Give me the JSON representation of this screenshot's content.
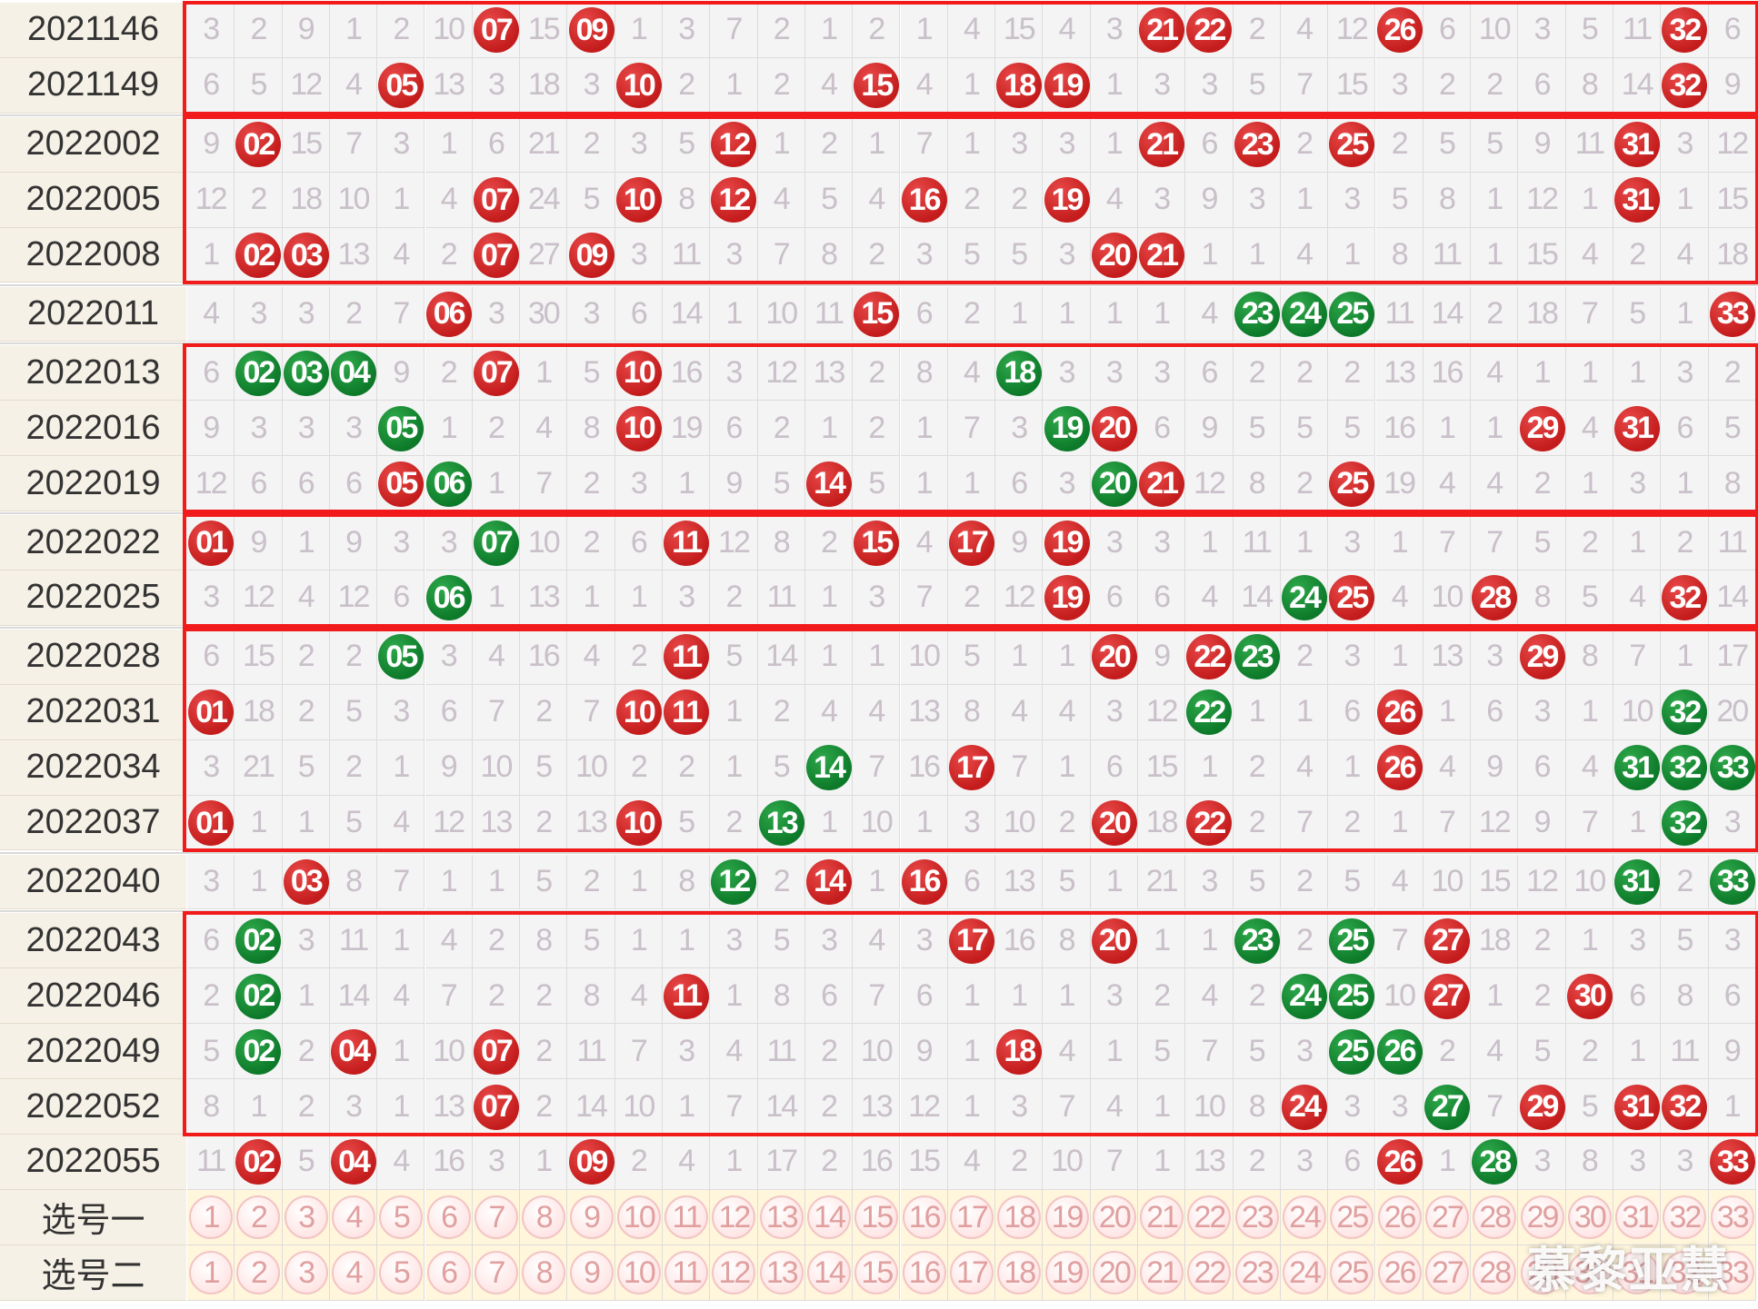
{
  "chart_data": {
    "type": "table",
    "title": "",
    "columns": 33,
    "rows": [
      {
        "label": "2021146",
        "cells": [
          "3",
          "2",
          "9",
          "1",
          "2",
          "10",
          "07",
          "15",
          "09",
          "1",
          "3",
          "7",
          "2",
          "1",
          "2",
          "1",
          "4",
          "15",
          "4",
          "3",
          "21",
          "22",
          "2",
          "4",
          "12",
          "26",
          "6",
          "10",
          "3",
          "5",
          "11",
          "32",
          "6"
        ],
        "balls": {
          "07": "red",
          "09": "red",
          "21": "red",
          "22": "red",
          "26": "red",
          "32": "red"
        }
      },
      {
        "label": "2021149",
        "cells": [
          "6",
          "5",
          "12",
          "4",
          "05",
          "13",
          "3",
          "18",
          "3",
          "10",
          "2",
          "1",
          "2",
          "4",
          "15",
          "4",
          "1",
          "18",
          "19",
          "1",
          "3",
          "3",
          "5",
          "7",
          "15",
          "3",
          "2",
          "2",
          "6",
          "8",
          "14",
          "32",
          "9"
        ],
        "balls": {
          "05": "red",
          "10": "red",
          "15": "red",
          "18": "red",
          "19": "red",
          "32": "red"
        }
      },
      {
        "label": "2022002",
        "cells": [
          "9",
          "02",
          "15",
          "7",
          "3",
          "1",
          "6",
          "21",
          "2",
          "3",
          "5",
          "12",
          "1",
          "2",
          "1",
          "7",
          "1",
          "3",
          "3",
          "1",
          "21",
          "6",
          "23",
          "2",
          "25",
          "2",
          "5",
          "5",
          "9",
          "11",
          "31",
          "3",
          "12"
        ],
        "balls": {
          "02": "red",
          "12": "red",
          "21": "red",
          "23": "red",
          "25": "red",
          "31": "red"
        }
      },
      {
        "label": "2022005",
        "cells": [
          "12",
          "2",
          "18",
          "10",
          "1",
          "4",
          "07",
          "24",
          "5",
          "10",
          "8",
          "12",
          "4",
          "5",
          "4",
          "16",
          "2",
          "2",
          "19",
          "4",
          "3",
          "9",
          "3",
          "1",
          "3",
          "5",
          "8",
          "1",
          "12",
          "1",
          "31",
          "1",
          "15"
        ],
        "balls": {
          "07": "red",
          "10": "red",
          "12": "red",
          "16": "red",
          "19": "red",
          "31": "red"
        }
      },
      {
        "label": "2022008",
        "cells": [
          "1",
          "02",
          "03",
          "13",
          "4",
          "2",
          "07",
          "27",
          "09",
          "3",
          "11",
          "3",
          "7",
          "8",
          "2",
          "3",
          "5",
          "5",
          "3",
          "20",
          "21",
          "1",
          "1",
          "4",
          "1",
          "8",
          "11",
          "1",
          "15",
          "4",
          "2",
          "4",
          "18"
        ],
        "balls": {
          "02": "red",
          "03": "red",
          "07": "red",
          "09": "red",
          "20": "red",
          "21": "red"
        }
      },
      {
        "label": "2022011",
        "cells": [
          "4",
          "3",
          "3",
          "2",
          "7",
          "06",
          "3",
          "30",
          "3",
          "6",
          "14",
          "1",
          "10",
          "11",
          "15",
          "6",
          "2",
          "1",
          "1",
          "1",
          "1",
          "4",
          "23",
          "24",
          "25",
          "11",
          "14",
          "2",
          "18",
          "7",
          "5",
          "1",
          "33"
        ],
        "balls": {
          "06": "red",
          "15": "red",
          "23": "green",
          "24": "green",
          "25": "green",
          "33": "red"
        }
      },
      {
        "label": "2022013",
        "cells": [
          "6",
          "02",
          "03",
          "04",
          "9",
          "2",
          "07",
          "1",
          "5",
          "10",
          "16",
          "3",
          "12",
          "13",
          "2",
          "8",
          "4",
          "18",
          "3",
          "3",
          "3",
          "6",
          "2",
          "2",
          "2",
          "13",
          "16",
          "4",
          "1",
          "1",
          "1",
          "3",
          "2"
        ],
        "balls": {
          "02": "green",
          "03": "green",
          "04": "green",
          "07": "red",
          "10": "red",
          "18": "green"
        }
      },
      {
        "label": "2022016",
        "cells": [
          "9",
          "3",
          "3",
          "3",
          "05",
          "1",
          "2",
          "4",
          "8",
          "10",
          "19",
          "6",
          "2",
          "1",
          "2",
          "1",
          "7",
          "3",
          "19",
          "20",
          "6",
          "9",
          "5",
          "5",
          "5",
          "16",
          "1",
          "1",
          "29",
          "4",
          "31",
          "6",
          "5"
        ],
        "balls": {
          "05": "green",
          "10": "red",
          "19": "green",
          "20": "red",
          "29": "red",
          "31": "red"
        }
      },
      {
        "label": "2022019",
        "cells": [
          "12",
          "6",
          "6",
          "6",
          "05",
          "06",
          "1",
          "7",
          "2",
          "3",
          "1",
          "9",
          "5",
          "14",
          "5",
          "1",
          "1",
          "6",
          "3",
          "20",
          "21",
          "12",
          "8",
          "2",
          "25",
          "19",
          "4",
          "4",
          "2",
          "1",
          "3",
          "1",
          "8"
        ],
        "balls": {
          "05": "red",
          "06": "green",
          "14": "red",
          "20": "green",
          "21": "red",
          "25": "red"
        }
      },
      {
        "label": "2022022",
        "cells": [
          "01",
          "9",
          "1",
          "9",
          "3",
          "3",
          "07",
          "10",
          "2",
          "6",
          "11",
          "12",
          "8",
          "2",
          "15",
          "4",
          "17",
          "9",
          "19",
          "3",
          "3",
          "1",
          "11",
          "1",
          "3",
          "1",
          "7",
          "7",
          "5",
          "2",
          "1",
          "2",
          "11"
        ],
        "balls": {
          "01": "red",
          "07": "green",
          "11": "red",
          "15": "red",
          "17": "red",
          "19": "red"
        }
      },
      {
        "label": "2022025",
        "cells": [
          "3",
          "12",
          "4",
          "12",
          "6",
          "06",
          "1",
          "13",
          "1",
          "1",
          "3",
          "2",
          "11",
          "1",
          "3",
          "7",
          "2",
          "12",
          "19",
          "6",
          "6",
          "4",
          "14",
          "24",
          "25",
          "4",
          "10",
          "28",
          "8",
          "5",
          "4",
          "32",
          "14"
        ],
        "balls": {
          "06": "green",
          "19": "red",
          "24": "green",
          "25": "red",
          "28": "red",
          "32": "red"
        }
      },
      {
        "label": "2022028",
        "cells": [
          "6",
          "15",
          "2",
          "2",
          "05",
          "3",
          "4",
          "16",
          "4",
          "2",
          "11",
          "5",
          "14",
          "1",
          "1",
          "10",
          "5",
          "1",
          "1",
          "20",
          "9",
          "22",
          "23",
          "2",
          "3",
          "1",
          "13",
          "3",
          "29",
          "8",
          "7",
          "1",
          "17"
        ],
        "balls": {
          "05": "green",
          "11": "red",
          "20": "red",
          "22": "red",
          "23": "green",
          "29": "red"
        }
      },
      {
        "label": "2022031",
        "cells": [
          "01",
          "18",
          "2",
          "5",
          "3",
          "6",
          "7",
          "2",
          "7",
          "10",
          "11",
          "1",
          "2",
          "4",
          "4",
          "13",
          "8",
          "4",
          "4",
          "3",
          "12",
          "22",
          "1",
          "1",
          "6",
          "26",
          "1",
          "6",
          "3",
          "1",
          "10",
          "32",
          "20"
        ],
        "balls": {
          "01": "red",
          "10": "red",
          "11": "red",
          "22": "green",
          "26": "red",
          "32": "green"
        }
      },
      {
        "label": "2022034",
        "cells": [
          "3",
          "21",
          "5",
          "2",
          "1",
          "9",
          "10",
          "5",
          "10",
          "2",
          "2",
          "1",
          "5",
          "14",
          "7",
          "16",
          "17",
          "7",
          "1",
          "6",
          "15",
          "1",
          "2",
          "4",
          "1",
          "26",
          "4",
          "9",
          "6",
          "4",
          "31",
          "32",
          "33"
        ],
        "balls": {
          "14": "green",
          "17": "red",
          "26": "red",
          "31": "green",
          "32": "green",
          "33": "green"
        }
      },
      {
        "label": "2022037",
        "cells": [
          "01",
          "1",
          "1",
          "5",
          "4",
          "12",
          "13",
          "2",
          "13",
          "10",
          "5",
          "2",
          "13",
          "1",
          "10",
          "1",
          "3",
          "10",
          "2",
          "20",
          "18",
          "22",
          "2",
          "7",
          "2",
          "1",
          "7",
          "12",
          "9",
          "7",
          "1",
          "32",
          "3"
        ],
        "balls": {
          "01": "red",
          "10": "red",
          "13": "green",
          "20": "red",
          "22": "red",
          "32": "green"
        }
      },
      {
        "label": "2022040",
        "cells": [
          "3",
          "1",
          "03",
          "8",
          "7",
          "1",
          "1",
          "5",
          "2",
          "1",
          "8",
          "12",
          "2",
          "14",
          "1",
          "16",
          "6",
          "13",
          "5",
          "1",
          "21",
          "3",
          "5",
          "2",
          "5",
          "4",
          "10",
          "15",
          "12",
          "10",
          "31",
          "2",
          "33"
        ],
        "balls": {
          "03": "red",
          "12": "green",
          "14": "red",
          "16": "red",
          "31": "green",
          "33": "green"
        }
      },
      {
        "label": "2022043",
        "cells": [
          "6",
          "02",
          "3",
          "11",
          "1",
          "4",
          "2",
          "8",
          "5",
          "1",
          "1",
          "3",
          "5",
          "3",
          "4",
          "3",
          "17",
          "16",
          "8",
          "20",
          "1",
          "1",
          "23",
          "2",
          "25",
          "7",
          "27",
          "18",
          "2",
          "1",
          "3",
          "5",
          "3"
        ],
        "balls": {
          "02": "green",
          "17": "red",
          "20": "red",
          "23": "green",
          "25": "green",
          "27": "red"
        }
      },
      {
        "label": "2022046",
        "cells": [
          "2",
          "02",
          "1",
          "14",
          "4",
          "7",
          "2",
          "2",
          "8",
          "4",
          "11",
          "1",
          "8",
          "6",
          "7",
          "6",
          "1",
          "1",
          "1",
          "3",
          "2",
          "4",
          "2",
          "24",
          "25",
          "10",
          "27",
          "1",
          "2",
          "30",
          "6",
          "8",
          "6"
        ],
        "balls": {
          "02": "green",
          "11": "red",
          "24": "green",
          "25": "green",
          "27": "red",
          "30": "red"
        }
      },
      {
        "label": "2022049",
        "cells": [
          "5",
          "02",
          "2",
          "04",
          "1",
          "10",
          "07",
          "2",
          "11",
          "7",
          "3",
          "4",
          "11",
          "2",
          "10",
          "9",
          "1",
          "18",
          "4",
          "1",
          "5",
          "7",
          "5",
          "3",
          "25",
          "26",
          "2",
          "4",
          "5",
          "2",
          "1",
          "11",
          "9"
        ],
        "balls": {
          "02": "green",
          "04": "red",
          "07": "red",
          "18": "red",
          "25": "green",
          "26": "green"
        }
      },
      {
        "label": "2022052",
        "cells": [
          "8",
          "1",
          "2",
          "3",
          "1",
          "13",
          "07",
          "2",
          "14",
          "10",
          "1",
          "7",
          "14",
          "2",
          "13",
          "12",
          "1",
          "3",
          "7",
          "4",
          "1",
          "10",
          "8",
          "24",
          "3",
          "3",
          "27",
          "7",
          "29",
          "5",
          "31",
          "32",
          "1"
        ],
        "balls": {
          "07": "red",
          "24": "red",
          "27": "green",
          "29": "red",
          "31": "red",
          "32": "red"
        }
      },
      {
        "label": "2022055",
        "cells": [
          "11",
          "02",
          "5",
          "04",
          "4",
          "16",
          "3",
          "1",
          "09",
          "2",
          "4",
          "1",
          "17",
          "2",
          "16",
          "15",
          "4",
          "2",
          "10",
          "7",
          "1",
          "13",
          "2",
          "3",
          "6",
          "26",
          "1",
          "28",
          "3",
          "8",
          "3",
          "3",
          "33"
        ],
        "balls": {
          "02": "red",
          "04": "red",
          "09": "red",
          "26": "red",
          "28": "green",
          "33": "red"
        }
      }
    ],
    "pick_rows": [
      {
        "label": "选号一",
        "numbers": [
          "1",
          "2",
          "3",
          "4",
          "5",
          "6",
          "7",
          "8",
          "9",
          "10",
          "11",
          "12",
          "13",
          "14",
          "15",
          "16",
          "17",
          "18",
          "19",
          "20",
          "21",
          "22",
          "23",
          "24",
          "25",
          "26",
          "27",
          "28",
          "29",
          "30",
          "31",
          "32",
          "33"
        ]
      },
      {
        "label": "选号二",
        "numbers": [
          "1",
          "2",
          "3",
          "4",
          "5",
          "6",
          "7",
          "8",
          "9",
          "10",
          "11",
          "12",
          "13",
          "14",
          "15",
          "16",
          "17",
          "18",
          "19",
          "20",
          "21",
          "22",
          "23",
          "24",
          "25",
          "26",
          "27",
          "28",
          "29",
          "30",
          "31",
          "32",
          "33"
        ]
      }
    ],
    "group_boxes": [
      [
        0,
        1
      ],
      [
        2,
        4
      ],
      [
        6,
        8
      ],
      [
        9,
        10
      ],
      [
        11,
        14
      ],
      [
        16,
        19
      ]
    ],
    "colors": {
      "red_ball": "#c41c1c",
      "green_ball": "#0d7a2a",
      "box": "#f21b1b",
      "label_bg": "#f6f1e6",
      "cell_bg": "#f4f4f4",
      "miss_text": "#c9c0c9"
    }
  },
  "watermark": "慕黎亚慧"
}
